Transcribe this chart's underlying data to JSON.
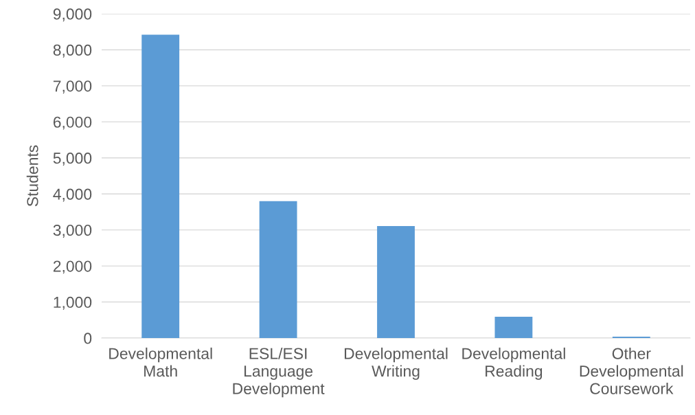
{
  "chart_data": {
    "type": "bar",
    "ylabel": "Students",
    "categories": [
      "Developmental Math",
      "ESL/ESI Language Development",
      "Developmental Writing",
      "Developmental Reading",
      "Other Developmental Coursework"
    ],
    "values": [
      8420,
      3800,
      3110,
      590,
      40
    ],
    "color": "#5b9bd5",
    "ylim": [
      0,
      9000
    ],
    "yticks": [
      {
        "value": 0,
        "label": "0"
      },
      {
        "value": 1000,
        "label": "1,000"
      },
      {
        "value": 2000,
        "label": "2,000"
      },
      {
        "value": 3000,
        "label": "3,000"
      },
      {
        "value": 4000,
        "label": "4,000"
      },
      {
        "value": 5000,
        "label": "5,000"
      },
      {
        "value": 6000,
        "label": "6,000"
      },
      {
        "value": 7000,
        "label": "7,000"
      },
      {
        "value": 8000,
        "label": "8,000"
      },
      {
        "value": 9000,
        "label": "9,000"
      }
    ],
    "grid": "y"
  }
}
